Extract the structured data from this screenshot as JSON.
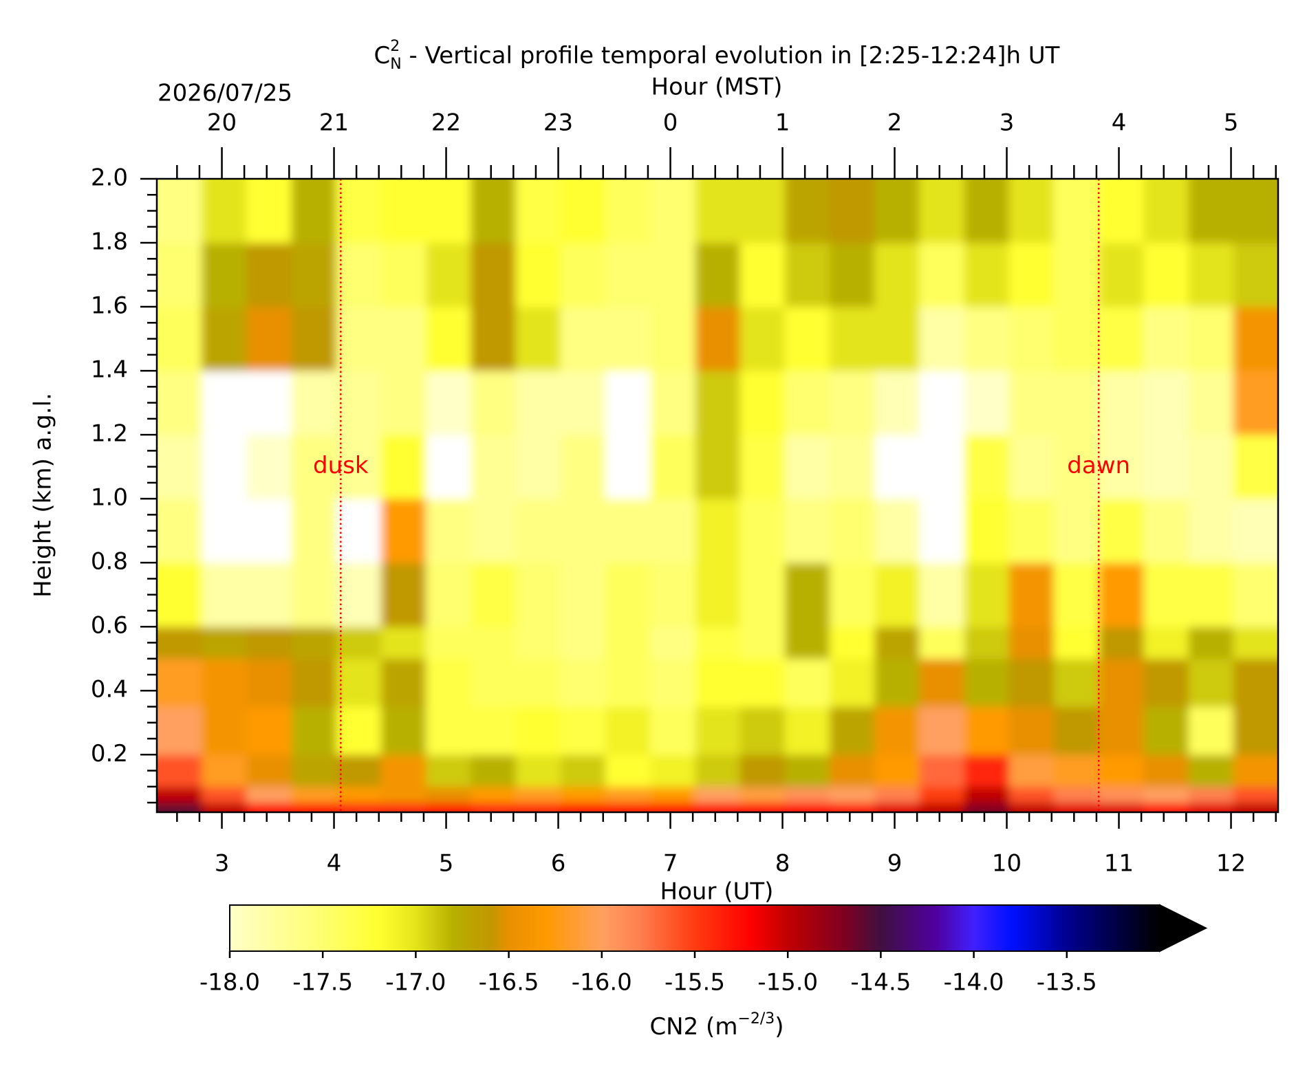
{
  "chart_data": {
    "type": "contour",
    "title": {
      "symbol": "C",
      "sub": "N",
      "sup": "2",
      "text": " - Vertical profile temporal evolution in [2:25-12:24]h UT"
    },
    "date": "2026/07/25",
    "x_label": "Hour (UT)",
    "x2_label": "Hour (MST)",
    "y_label": "Height (km) a.g.l.",
    "xlim": [
      2.42,
      12.42
    ],
    "ylim": [
      0.02,
      2.0
    ],
    "xticks": [
      3,
      4,
      5,
      6,
      7,
      8,
      9,
      10,
      11,
      12
    ],
    "x2ticks": [
      {
        "value": 3,
        "label": "20"
      },
      {
        "value": 4,
        "label": "21"
      },
      {
        "value": 5,
        "label": "22"
      },
      {
        "value": 6,
        "label": "23"
      },
      {
        "value": 7,
        "label": "0"
      },
      {
        "value": 8,
        "label": "1"
      },
      {
        "value": 9,
        "label": "2"
      },
      {
        "value": 10,
        "label": "3"
      },
      {
        "value": 11,
        "label": "4"
      },
      {
        "value": 12,
        "label": "5"
      }
    ],
    "xminorticks": [
      2.6,
      2.8,
      3.2,
      3.4,
      3.6,
      3.8,
      4.2,
      4.4,
      4.6,
      4.8,
      5.2,
      5.4,
      5.6,
      5.8,
      6.2,
      6.4,
      6.6,
      6.8,
      7.2,
      7.4,
      7.6,
      7.8,
      8.2,
      8.4,
      8.6,
      8.8,
      9.2,
      9.4,
      9.6,
      9.8,
      10.2,
      10.4,
      10.6,
      10.8,
      11.2,
      11.4,
      11.6,
      11.8,
      12.2,
      12.4
    ],
    "yticks": [
      0.2,
      0.4,
      0.6,
      0.8,
      {
        "value": 1,
        "label": "1.0"
      },
      1.2,
      1.4,
      1.6,
      1.8,
      {
        "value": 2,
        "label": "2.0"
      }
    ],
    "yminorticks": [
      0.05,
      0.1,
      0.15,
      0.25,
      0.3,
      0.35,
      0.45,
      0.5,
      0.55,
      0.65,
      0.7,
      0.75,
      0.85,
      0.9,
      0.95,
      1.05,
      1.1,
      1.15,
      1.25,
      1.3,
      1.35,
      1.45,
      1.5,
      1.55,
      1.65,
      1.7,
      1.75,
      1.85,
      1.9,
      1.95
    ],
    "x_edges": [
      2.42,
      2.82,
      3.22,
      3.62,
      4.02,
      4.42,
      4.82,
      5.22,
      5.62,
      6.02,
      6.42,
      6.82,
      7.22,
      7.62,
      8.02,
      8.42,
      8.82,
      9.22,
      9.62,
      10.02,
      10.42,
      10.82,
      11.22,
      11.62,
      12.02,
      12.42
    ],
    "y_edges": [
      0.02,
      0.05,
      0.1,
      0.2,
      0.35,
      0.5,
      0.6,
      0.8,
      1.0,
      1.2,
      1.4,
      1.6,
      1.8,
      2.0
    ],
    "z": [
      [
        -14.6,
        -15.0,
        -15.2,
        -15.3,
        -15.4,
        -15.4,
        -15.3,
        -15.4,
        -15.4,
        -15.3,
        -15.3,
        -15.3,
        -15.2,
        -15.2,
        -15.2,
        -15.3,
        -15.1,
        -15.0,
        -14.7,
        -15.0,
        -15.1,
        -15.1,
        -15.2,
        -15.1,
        -15.0
      ],
      [
        -15.0,
        -15.6,
        -16.0,
        -16.2,
        -16.3,
        -16.4,
        -16.5,
        -16.3,
        -16.2,
        -16.3,
        -16.2,
        -16.3,
        -16.0,
        -16.1,
        -15.9,
        -16.0,
        -15.8,
        -15.5,
        -15.0,
        -15.6,
        -15.8,
        -15.9,
        -16.0,
        -15.8,
        -15.6
      ],
      [
        -15.6,
        -16.2,
        -16.5,
        -16.7,
        -16.6,
        -16.4,
        -16.9,
        -16.8,
        -17.0,
        -16.9,
        -17.2,
        -17.1,
        -16.9,
        -16.6,
        -16.8,
        -16.5,
        -16.3,
        -15.7,
        -15.4,
        -16.1,
        -16.2,
        -16.3,
        -16.5,
        -16.8,
        -16.4
      ],
      [
        -16.0,
        -16.4,
        -16.3,
        -16.8,
        -17.2,
        -16.8,
        -17.3,
        -17.3,
        -17.2,
        -17.3,
        -17.1,
        -17.4,
        -17.0,
        -16.9,
        -17.1,
        -16.7,
        -16.4,
        -16.0,
        -16.3,
        -16.5,
        -16.6,
        -16.5,
        -16.8,
        -17.4,
        -16.6
      ],
      [
        -16.2,
        -16.4,
        -16.5,
        -16.6,
        -17.0,
        -16.7,
        -17.3,
        -17.4,
        -17.4,
        -17.5,
        -17.4,
        -17.5,
        -17.2,
        -17.2,
        -17.4,
        -17.1,
        -16.8,
        -16.5,
        -16.8,
        -16.6,
        -16.9,
        -16.5,
        -16.6,
        -16.9,
        -16.6
      ],
      [
        -16.6,
        -16.7,
        -16.6,
        -16.7,
        -16.9,
        -17.0,
        -17.4,
        -17.4,
        -17.5,
        -17.6,
        -17.4,
        -17.6,
        -17.3,
        -17.4,
        -16.8,
        -17.2,
        -16.7,
        -17.4,
        -16.9,
        -16.5,
        -17.2,
        -16.6,
        -17.1,
        -16.8,
        -17.0
      ],
      [
        -17.2,
        -17.8,
        -17.8,
        -17.6,
        -17.9,
        -16.6,
        -17.5,
        -17.3,
        -17.5,
        -17.6,
        -17.4,
        -17.5,
        -17.1,
        -17.4,
        -16.8,
        -17.4,
        -17.1,
        -17.8,
        -17.0,
        -16.4,
        -17.3,
        -16.3,
        -17.3,
        -17.3,
        -17.5
      ],
      [
        -17.6,
        -18.2,
        -18.2,
        -17.6,
        -18.2,
        -16.3,
        -17.6,
        -17.7,
        -17.6,
        -17.6,
        -17.6,
        -17.6,
        -17.1,
        -17.4,
        -17.6,
        -17.5,
        -17.8,
        -18.2,
        -17.2,
        -17.4,
        -17.6,
        -17.3,
        -17.6,
        -17.8,
        -17.9
      ],
      [
        -17.8,
        -18.2,
        -18.0,
        -17.6,
        -17.7,
        -17.2,
        -18.2,
        -17.7,
        -17.8,
        -17.6,
        -18.2,
        -17.4,
        -16.9,
        -17.3,
        -17.8,
        -17.7,
        -18.2,
        -18.2,
        -17.3,
        -17.7,
        -17.6,
        -17.8,
        -17.9,
        -17.8,
        -17.3
      ],
      [
        -17.6,
        -18.2,
        -18.2,
        -17.8,
        -17.7,
        -17.6,
        -18.0,
        -17.6,
        -17.8,
        -17.8,
        -18.2,
        -17.6,
        -16.9,
        -17.2,
        -17.5,
        -17.6,
        -17.9,
        -18.2,
        -18.0,
        -17.6,
        -17.6,
        -17.8,
        -17.9,
        -17.7,
        -16.2
      ],
      [
        -17.4,
        -16.7,
        -16.5,
        -16.6,
        -17.6,
        -17.6,
        -17.2,
        -16.6,
        -17.0,
        -17.6,
        -17.6,
        -17.5,
        -16.5,
        -17.0,
        -17.2,
        -17.0,
        -17.0,
        -17.8,
        -17.6,
        -17.5,
        -17.4,
        -17.3,
        -17.6,
        -17.5,
        -16.4
      ],
      [
        -17.5,
        -16.8,
        -16.6,
        -16.7,
        -17.5,
        -17.4,
        -17.0,
        -16.6,
        -17.2,
        -17.4,
        -17.5,
        -17.5,
        -16.8,
        -17.2,
        -16.9,
        -16.8,
        -17.0,
        -17.4,
        -17.0,
        -17.2,
        -17.4,
        -17.0,
        -17.2,
        -17.0,
        -16.9
      ],
      [
        -17.6,
        -17.0,
        -17.2,
        -16.8,
        -17.3,
        -17.2,
        -17.2,
        -16.8,
        -17.3,
        -17.2,
        -17.4,
        -17.5,
        -17.0,
        -17.0,
        -16.7,
        -16.6,
        -16.8,
        -17.0,
        -16.8,
        -17.0,
        -17.4,
        -17.2,
        -17.0,
        -16.8,
        -16.8
      ]
    ],
    "under_color": "#ffffff",
    "colormap": [
      {
        "value": -18,
        "color": "#ffffc8"
      },
      {
        "value": -17.5,
        "color": "#ffff70"
      },
      {
        "value": -17.2,
        "color": "#ffff30"
      },
      {
        "value": -17,
        "color": "#e4e41a"
      },
      {
        "value": -16.8,
        "color": "#b8b000"
      },
      {
        "value": -16.6,
        "color": "#c09800"
      },
      {
        "value": -16.5,
        "color": "#e89000"
      },
      {
        "value": -16.3,
        "color": "#ff9a00"
      },
      {
        "value": -16,
        "color": "#ffa060"
      },
      {
        "value": -15.8,
        "color": "#ff8050"
      },
      {
        "value": -15.5,
        "color": "#ff3c10"
      },
      {
        "value": -15.2,
        "color": "#ff0000"
      },
      {
        "value": -15,
        "color": "#c00000"
      },
      {
        "value": -14.7,
        "color": "#800020"
      },
      {
        "value": -14.5,
        "color": "#401040"
      },
      {
        "value": -14.2,
        "color": "#5000a0"
      },
      {
        "value": -14,
        "color": "#4020ff"
      },
      {
        "value": -13.8,
        "color": "#0010ff"
      },
      {
        "value": -13.5,
        "color": "#000090"
      },
      {
        "value": -13,
        "color": "#000000"
      }
    ],
    "colorbar": {
      "lim": [
        -18,
        -13
      ],
      "extend": "max",
      "ticks": [
        {
          "value": -18,
          "label": "-18.0"
        },
        -17.5,
        {
          "value": -17,
          "label": "-17.0"
        },
        -16.5,
        {
          "value": -16,
          "label": "-16.0"
        },
        -15.5,
        {
          "value": -15,
          "label": "-15.0"
        },
        -14.5,
        {
          "value": -14,
          "label": "-14.0"
        },
        -13.5
      ],
      "label": {
        "base": "CN2 (m",
        "sup": "−2/3",
        "end": ")"
      }
    },
    "annotations": [
      {
        "text": "dusk",
        "x": 4.06,
        "y": 1.1,
        "color": "#ff0000"
      },
      {
        "text": "dawn",
        "x": 10.82,
        "y": 1.1,
        "color": "#ff0000"
      }
    ]
  }
}
